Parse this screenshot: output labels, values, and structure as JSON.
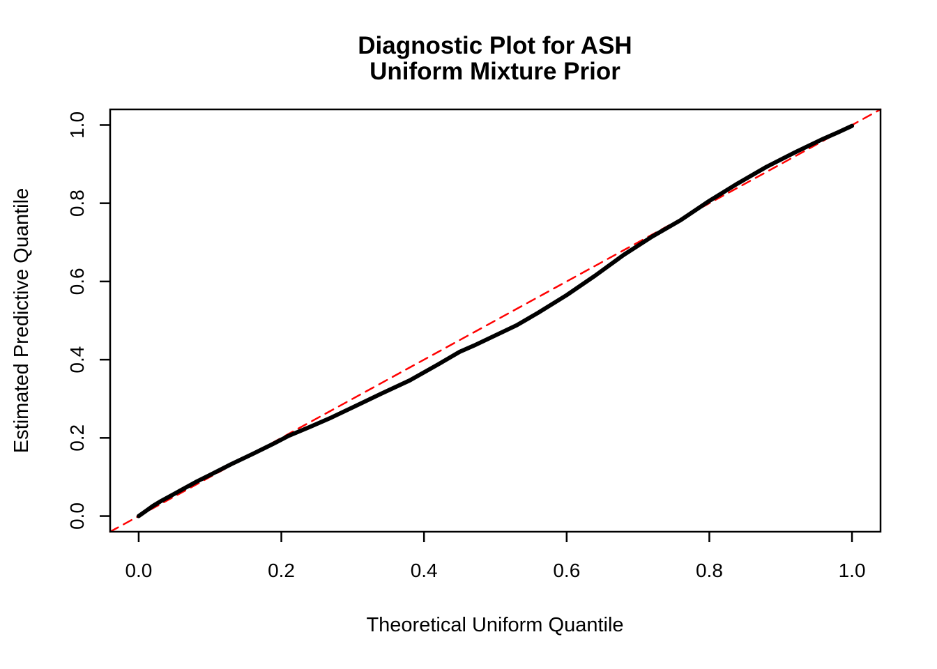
{
  "title": {
    "line1": "Diagnostic Plot for ASH",
    "line2": "Uniform Mixture Prior"
  },
  "axes": {
    "x_label": "Theoretical Uniform Quantile",
    "y_label": "Estimated Predictive Quantile",
    "x_tick_labels": [
      "0.0",
      "0.2",
      "0.4",
      "0.6",
      "0.8",
      "1.0"
    ],
    "y_tick_labels": [
      "0.0",
      "0.2",
      "0.4",
      "0.6",
      "0.8",
      "1.0"
    ]
  },
  "colors": {
    "background": "#FFFFFF",
    "axis": "#000000",
    "curve": "#000000",
    "reference_line": "#FF0000"
  },
  "chart_data": {
    "type": "line",
    "title": "Diagnostic Plot for ASH\nUniform Mixture Prior",
    "xlabel": "Theoretical Uniform Quantile",
    "ylabel": "Estimated Predictive Quantile",
    "xlim": [
      -0.04,
      1.04
    ],
    "ylim": [
      -0.04,
      1.04
    ],
    "x_ticks": [
      0.0,
      0.2,
      0.4,
      0.6,
      0.8,
      1.0
    ],
    "y_ticks": [
      0.0,
      0.2,
      0.4,
      0.6,
      0.8,
      1.0
    ],
    "grid": false,
    "legend": "none",
    "series": [
      {
        "name": "estimated-predictive-quantile-curve",
        "color": "#000000",
        "style": "solid",
        "line_width": 6,
        "points": [
          [
            0.0,
            0.0
          ],
          [
            0.01,
            0.013
          ],
          [
            0.02,
            0.026
          ],
          [
            0.03,
            0.037
          ],
          [
            0.05,
            0.057
          ],
          [
            0.08,
            0.087
          ],
          [
            0.1,
            0.105
          ],
          [
            0.13,
            0.133
          ],
          [
            0.16,
            0.159
          ],
          [
            0.19,
            0.186
          ],
          [
            0.21,
            0.205
          ],
          [
            0.24,
            0.228
          ],
          [
            0.27,
            0.252
          ],
          [
            0.3,
            0.278
          ],
          [
            0.34,
            0.313
          ],
          [
            0.38,
            0.347
          ],
          [
            0.42,
            0.388
          ],
          [
            0.45,
            0.42
          ],
          [
            0.47,
            0.436
          ],
          [
            0.5,
            0.462
          ],
          [
            0.53,
            0.488
          ],
          [
            0.56,
            0.52
          ],
          [
            0.6,
            0.565
          ],
          [
            0.64,
            0.615
          ],
          [
            0.68,
            0.668
          ],
          [
            0.72,
            0.715
          ],
          [
            0.76,
            0.757
          ],
          [
            0.8,
            0.806
          ],
          [
            0.84,
            0.851
          ],
          [
            0.88,
            0.893
          ],
          [
            0.92,
            0.93
          ],
          [
            0.96,
            0.965
          ],
          [
            0.98,
            0.981
          ],
          [
            1.0,
            0.998
          ]
        ]
      },
      {
        "name": "y-equals-x-reference-line",
        "color": "#FF0000",
        "style": "dashed",
        "line_width": 2.5,
        "dash_pattern": "13 9",
        "points": [
          [
            -0.04,
            -0.04
          ],
          [
            1.04,
            1.04
          ]
        ]
      }
    ]
  }
}
